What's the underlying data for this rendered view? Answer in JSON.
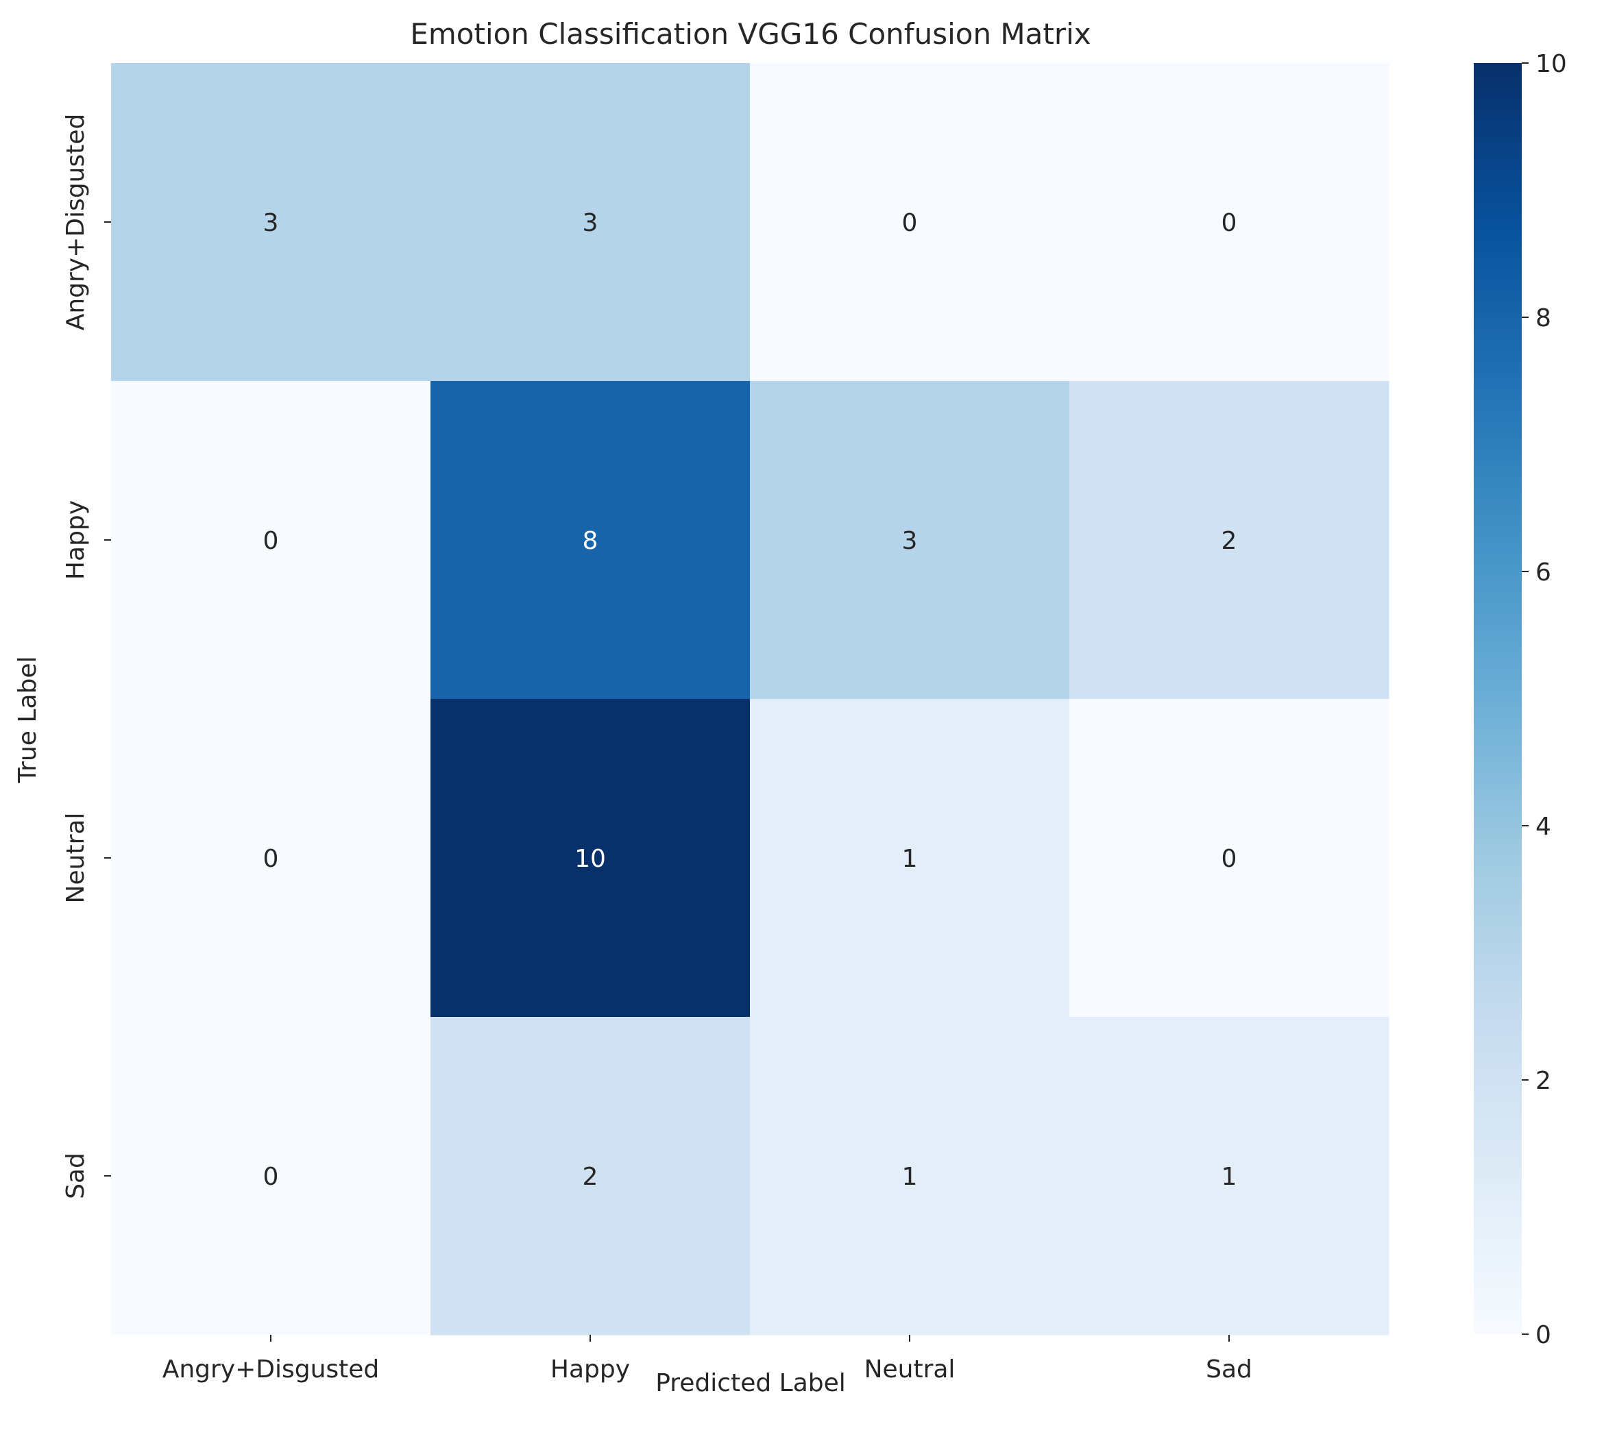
{
  "chart_data": {
    "type": "heatmap",
    "title": "Emotion Classification VGG16 Confusion Matrix",
    "xlabel": "Predicted Label",
    "ylabel": "True Label",
    "x_categories": [
      "Angry+Disgusted",
      "Happy",
      "Neutral",
      "Sad"
    ],
    "y_categories": [
      "Angry+Disgusted",
      "Happy",
      "Neutral",
      "Sad"
    ],
    "values": [
      [
        3,
        3,
        0,
        0
      ],
      [
        0,
        8,
        3,
        2
      ],
      [
        0,
        10,
        1,
        0
      ],
      [
        0,
        2,
        1,
        1
      ]
    ],
    "colorbar": {
      "min": 0,
      "max": 10,
      "ticks": [
        0,
        2,
        4,
        6,
        8,
        10
      ],
      "colormap": "Blues"
    },
    "annotated": true,
    "grid": false
  }
}
